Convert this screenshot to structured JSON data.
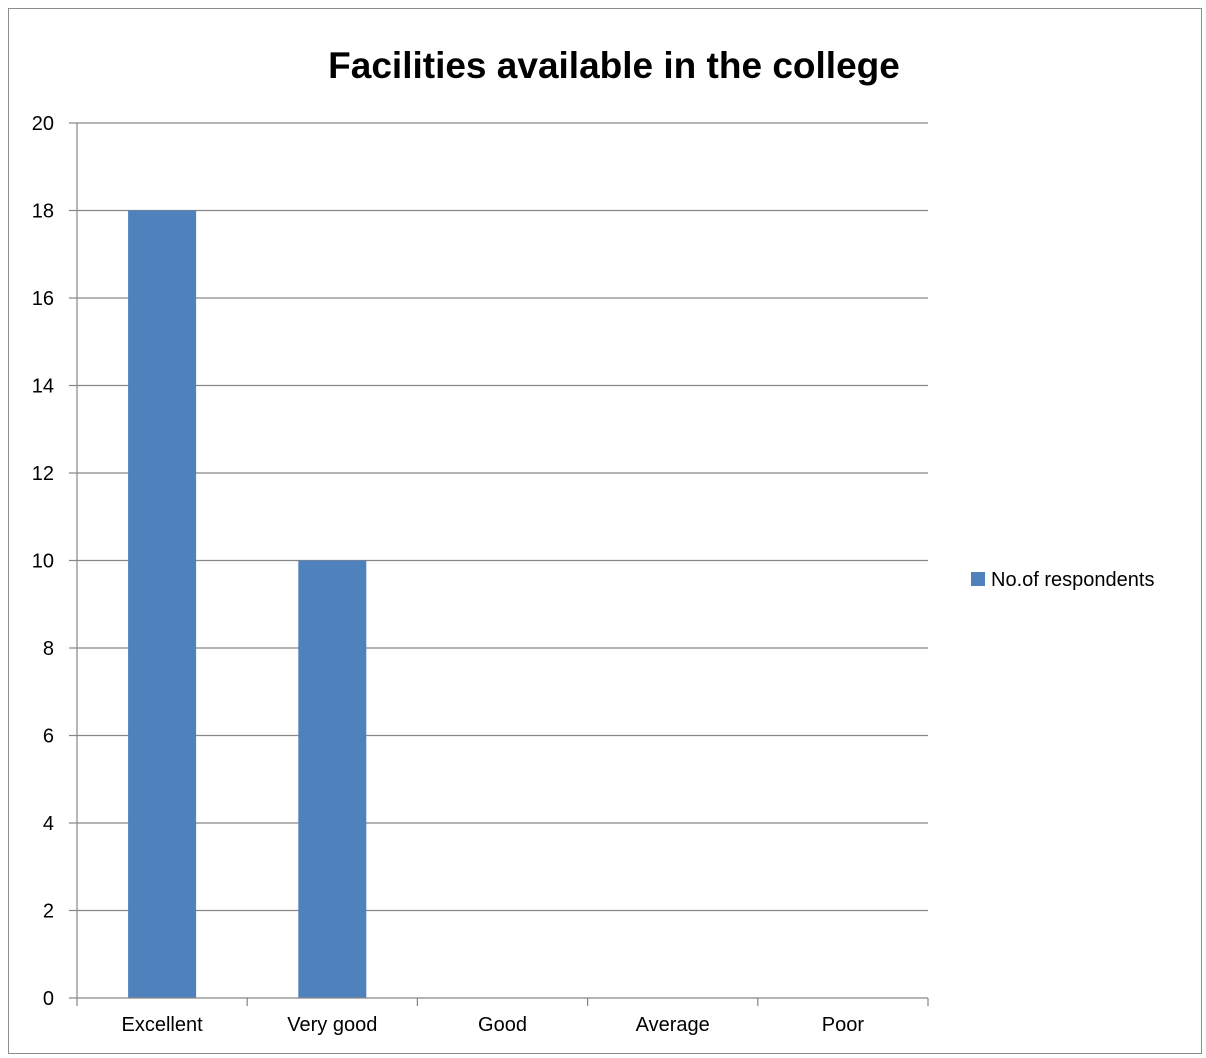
{
  "chart_data": {
    "type": "bar",
    "title": "Facilities available in the college",
    "categories": [
      "Excellent",
      "Very good",
      "Good",
      "Average",
      "Poor"
    ],
    "series": [
      {
        "name": "No.of respondents",
        "values": [
          18,
          10,
          0,
          0,
          0
        ],
        "color": "#4F81BD"
      }
    ],
    "ylim": [
      0,
      20
    ],
    "yticks": [
      0,
      2,
      4,
      6,
      8,
      10,
      12,
      14,
      16,
      18,
      20
    ],
    "grid": true,
    "legend_position": "right"
  }
}
